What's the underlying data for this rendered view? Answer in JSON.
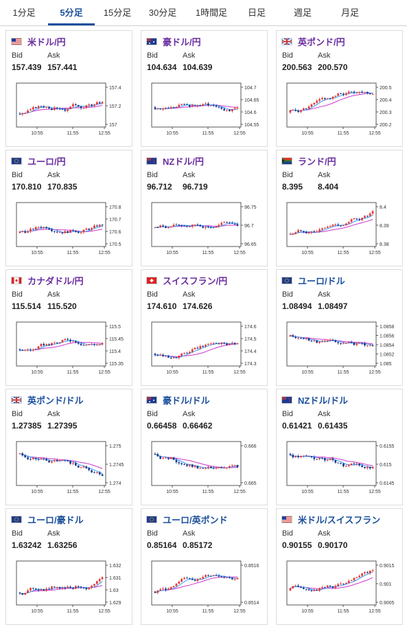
{
  "tabs": [
    "1分足",
    "5分足",
    "15分足",
    "30分足",
    "1時間足",
    "日足",
    "週足",
    "月足"
  ],
  "active_tab": 1,
  "labels": {
    "bid": "Bid",
    "ask": "Ask"
  },
  "x_ticks": [
    "10:55",
    "11:55",
    "12:55"
  ],
  "colors": {
    "up": "#e53935",
    "down": "#1a3c8f",
    "ma1": "#cc33cc",
    "ma2": "#3399ff",
    "accent": "#1a4f9c"
  },
  "cards": [
    {
      "pair": "米ドル/円",
      "flag": "us",
      "bid": "157.439",
      "ask": "157.441",
      "y_ticks": [
        "157.4",
        "157.2",
        "157"
      ],
      "trend": 0.8
    },
    {
      "pair": "豪ドル/円",
      "flag": "au",
      "bid": "104.634",
      "ask": "104.639",
      "y_ticks": [
        "104.7",
        "104.65",
        "104.6",
        "104.55"
      ],
      "trend": 0.2
    },
    {
      "pair": "英ポンド/円",
      "flag": "gb",
      "bid": "200.563",
      "ask": "200.570",
      "y_ticks": [
        "200.5",
        "200.4",
        "200.3",
        "200.2"
      ],
      "trend": 0.7
    },
    {
      "pair": "ユーロ/円",
      "flag": "eu",
      "bid": "170.810",
      "ask": "170.835",
      "y_ticks": [
        "170.8",
        "170.7",
        "170.6",
        "170.5"
      ],
      "trend": 0.8
    },
    {
      "pair": "NZドル/円",
      "flag": "nz",
      "bid": "96.712",
      "ask": "96.719",
      "y_ticks": [
        "96.75",
        "96.7",
        "96.65"
      ],
      "trend": 0.3
    },
    {
      "pair": "ランド/円",
      "flag": "za",
      "bid": "8.395",
      "ask": "8.404",
      "y_ticks": [
        "8.4",
        "8.39",
        "8.38"
      ],
      "trend": 0.9
    },
    {
      "pair": "カナダドル/円",
      "flag": "ca",
      "bid": "115.514",
      "ask": "115.520",
      "y_ticks": [
        "115.5",
        "115.45",
        "115.4",
        "115.35"
      ],
      "trend": 0.5
    },
    {
      "pair": "スイスフラン/円",
      "flag": "ch",
      "bid": "174.610",
      "ask": "174.626",
      "y_ticks": [
        "174.6",
        "174.5",
        "174.4",
        "174.3"
      ],
      "trend": 0.9
    },
    {
      "pair": "ユーロ/ドル",
      "flag": "eu",
      "bid": "1.08494",
      "ask": "1.08497",
      "y_ticks": [
        "1.0858",
        "1.0856",
        "1.0854",
        "1.0852",
        "1.085"
      ],
      "trend": -0.7
    },
    {
      "pair": "英ポンド/ドル",
      "flag": "gb",
      "bid": "1.27385",
      "ask": "1.27395",
      "y_ticks": [
        "1.275",
        "1.2745",
        "1.274"
      ],
      "trend": -0.9
    },
    {
      "pair": "豪ドル/ドル",
      "flag": "au",
      "bid": "0.66458",
      "ask": "0.66462",
      "y_ticks": [
        "0.666",
        "0.665"
      ],
      "trend": -0.9
    },
    {
      "pair": "NZドル/ドル",
      "flag": "nz",
      "bid": "0.61421",
      "ask": "0.61435",
      "y_ticks": [
        "0.6155",
        "0.615",
        "0.6145"
      ],
      "trend": -0.9
    },
    {
      "pair": "ユーロ/豪ドル",
      "flag": "eu",
      "bid": "1.63242",
      "ask": "1.63256",
      "y_ticks": [
        "1.632",
        "1.631",
        "1.63",
        "1.629"
      ],
      "trend": 0.9
    },
    {
      "pair": "ユーロ/英ポンド",
      "flag": "eu",
      "bid": "0.85164",
      "ask": "0.85172",
      "y_ticks": [
        "0.8516",
        "0.8514"
      ],
      "trend": 0.8
    },
    {
      "pair": "米ドル/スイスフラン",
      "flag": "us",
      "bid": "0.90155",
      "ask": "0.90170",
      "y_ticks": [
        "0.9015",
        "0.901",
        "0.9005"
      ],
      "trend": 0.7
    }
  ]
}
